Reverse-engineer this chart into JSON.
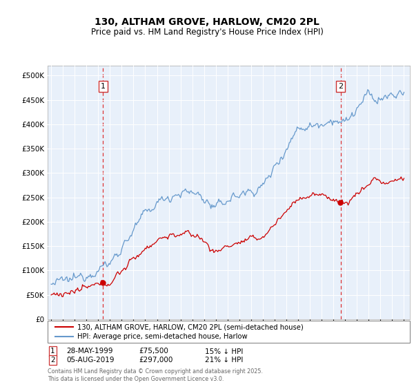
{
  "title": "130, ALTHAM GROVE, HARLOW, CM20 2PL",
  "subtitle": "Price paid vs. HM Land Registry's House Price Index (HPI)",
  "legend_property": "130, ALTHAM GROVE, HARLOW, CM20 2PL (semi-detached house)",
  "legend_hpi": "HPI: Average price, semi-detached house, Harlow",
  "annotation1_label": "1",
  "annotation1_date": "28-MAY-1999",
  "annotation1_price": "£75,500",
  "annotation1_hpi": "15% ↓ HPI",
  "annotation2_label": "2",
  "annotation2_date": "05-AUG-2019",
  "annotation2_price": "£297,000",
  "annotation2_hpi": "21% ↓ HPI",
  "footer": "Contains HM Land Registry data © Crown copyright and database right 2025.\nThis data is licensed under the Open Government Licence v3.0.",
  "sale1_year": 1999.41,
  "sale1_price": 75500,
  "sale2_year": 2019.62,
  "sale2_price": 297000,
  "hpi_color": "#6699cc",
  "property_color": "#cc0000",
  "vline_color": "#dd3333",
  "background_color": "#e8f0fa",
  "plot_bg_color": "#e8f0fa",
  "ylim_min": 0,
  "ylim_max": 520000,
  "xlim_min": 1994.7,
  "xlim_max": 2025.5
}
